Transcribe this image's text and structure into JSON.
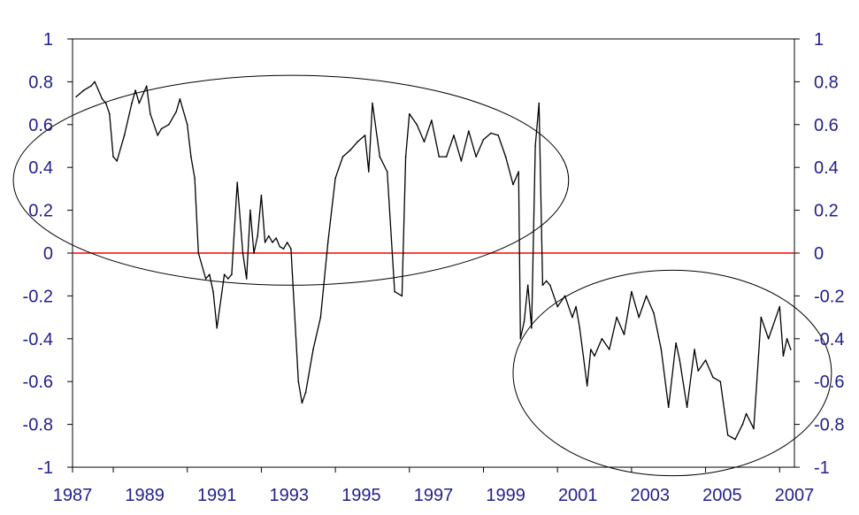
{
  "chart_data": {
    "type": "line",
    "title": "",
    "xlabel": "",
    "ylabel": "",
    "xlim": [
      1987.9,
      2007.4
    ],
    "ylim": [
      -1,
      1
    ],
    "x_ticks": [
      "1987",
      "1989",
      "1991",
      "1993",
      "1995",
      "1997",
      "1999",
      "2001",
      "2003",
      "2005",
      "2007"
    ],
    "y_ticks": [
      "1",
      "0.8",
      "0.6",
      "0.4",
      "0.2",
      "0",
      "-0.2",
      "-0.4",
      "-0.6",
      "-0.8",
      "-1"
    ],
    "grid": false,
    "legend": "none",
    "reference_line": {
      "y": 0,
      "color": "#ff0000"
    },
    "line_color": "#000000",
    "tick_color": "#1f1f8f",
    "series": [
      {
        "x": [
          1988.0,
          1988.2,
          1988.4,
          1988.5,
          1988.7,
          1988.8,
          1988.9,
          1989.0,
          1989.1,
          1989.3,
          1989.5,
          1989.6,
          1989.7,
          1989.9,
          1990.0,
          1990.2,
          1990.3,
          1990.5,
          1990.7,
          1990.8,
          1991.0,
          1991.1,
          1991.2,
          1991.3,
          1991.5,
          1991.6,
          1991.7,
          1991.8,
          1992.0,
          1992.1,
          1992.2,
          1992.35,
          1992.5,
          1992.6,
          1992.7,
          1992.8,
          1992.9,
          1993.0,
          1993.1,
          1993.2,
          1993.3,
          1993.4,
          1993.5,
          1993.6,
          1993.7,
          1993.8,
          1994.0,
          1994.1,
          1994.2,
          1994.4,
          1994.6,
          1994.8,
          1995.0,
          1995.2,
          1995.4,
          1995.6,
          1995.8,
          1995.9,
          1996.0,
          1996.2,
          1996.4,
          1996.6,
          1996.8,
          1996.9,
          1997.0,
          1997.2,
          1997.4,
          1997.6,
          1997.8,
          1998.0,
          1998.2,
          1998.4,
          1998.6,
          1998.8,
          1999.0,
          1999.2,
          1999.4,
          1999.6,
          1999.8,
          1999.95,
          2000.0,
          2000.1,
          2000.2,
          2000.3,
          2000.4,
          2000.5,
          2000.6,
          2000.7,
          2000.8,
          2001.0,
          2001.2,
          2001.4,
          2001.5,
          2001.6,
          2001.8,
          2001.9,
          2002.0,
          2002.2,
          2002.4,
          2002.6,
          2002.8,
          2003.0,
          2003.2,
          2003.4,
          2003.6,
          2003.8,
          2004.0,
          2004.2,
          2004.3,
          2004.5,
          2004.7,
          2004.8,
          2005.0,
          2005.2,
          2005.4,
          2005.6,
          2005.8,
          2006.0,
          2006.1,
          2006.3,
          2006.5,
          2006.7,
          2006.8,
          2007.0,
          2007.1,
          2007.2,
          2007.3
        ],
        "values": [
          0.73,
          0.76,
          0.78,
          0.8,
          0.72,
          0.7,
          0.65,
          0.45,
          0.43,
          0.55,
          0.7,
          0.76,
          0.7,
          0.78,
          0.65,
          0.55,
          0.58,
          0.6,
          0.66,
          0.72,
          0.6,
          0.45,
          0.35,
          0.0,
          -0.12,
          -0.1,
          -0.18,
          -0.35,
          -0.1,
          -0.12,
          -0.1,
          0.33,
          0.0,
          -0.12,
          0.2,
          0.0,
          0.08,
          0.27,
          0.05,
          0.08,
          0.05,
          0.07,
          0.03,
          0.02,
          0.05,
          0.02,
          -0.6,
          -0.7,
          -0.65,
          -0.45,
          -0.3,
          0.05,
          0.35,
          0.45,
          0.48,
          0.52,
          0.55,
          0.38,
          0.7,
          0.45,
          0.38,
          -0.18,
          -0.2,
          0.45,
          0.65,
          0.6,
          0.52,
          0.62,
          0.45,
          0.45,
          0.55,
          0.43,
          0.57,
          0.45,
          0.53,
          0.56,
          0.55,
          0.45,
          0.32,
          0.38,
          -0.4,
          -0.32,
          -0.15,
          -0.35,
          0.5,
          0.7,
          -0.15,
          -0.13,
          -0.15,
          -0.25,
          -0.2,
          -0.3,
          -0.25,
          -0.35,
          -0.62,
          -0.45,
          -0.48,
          -0.4,
          -0.45,
          -0.3,
          -0.38,
          -0.18,
          -0.3,
          -0.2,
          -0.28,
          -0.45,
          -0.72,
          -0.42,
          -0.5,
          -0.72,
          -0.45,
          -0.55,
          -0.5,
          -0.58,
          -0.6,
          -0.85,
          -0.87,
          -0.8,
          -0.75,
          -0.82,
          -0.3,
          -0.4,
          -0.35,
          -0.25,
          -0.48,
          -0.4,
          -0.45
        ]
      }
    ]
  },
  "annotations": [
    {
      "type": "ellipse",
      "cx": 1993.8,
      "cy": 0.34,
      "rx": 7.5,
      "ry": 0.49
    },
    {
      "type": "ellipse",
      "cx": 2004.1,
      "cy": -0.56,
      "rx": 4.3,
      "ry": 0.48
    }
  ]
}
